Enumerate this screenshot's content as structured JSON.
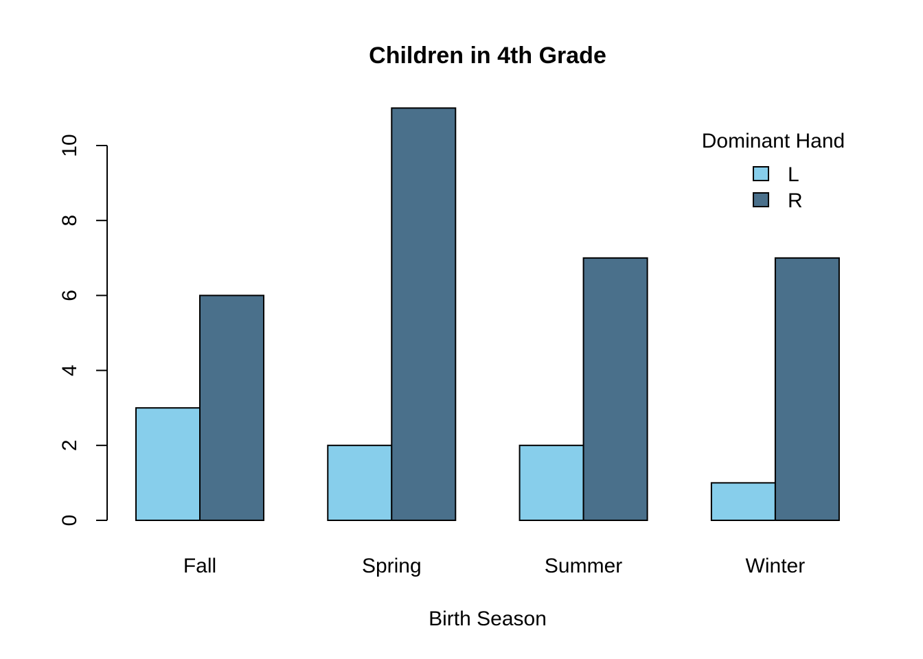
{
  "chart_data": {
    "type": "bar",
    "title": "Children in 4th Grade",
    "xlabel": "Birth Season",
    "ylabel": "",
    "categories": [
      "Fall",
      "Spring",
      "Summer",
      "Winter"
    ],
    "series": [
      {
        "name": "L",
        "values": [
          3,
          2,
          2,
          1
        ],
        "color": "#87CEEB"
      },
      {
        "name": "R",
        "values": [
          6,
          11,
          7,
          7
        ],
        "color": "#4A708B"
      }
    ],
    "yticks": [
      "0",
      "2",
      "4",
      "6",
      "8",
      "10"
    ],
    "ylim": [
      0,
      11
    ],
    "legend": {
      "title": "Dominant Hand",
      "position": "top-right"
    },
    "grid": false,
    "grouped": true
  }
}
